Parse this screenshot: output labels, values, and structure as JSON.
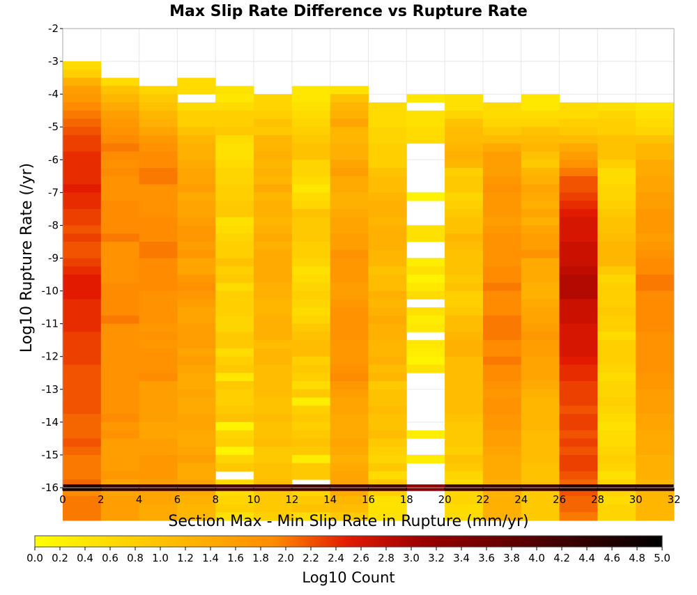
{
  "chart_data": {
    "type": "heatmap",
    "title": "Max Slip Rate Difference vs Rupture Rate",
    "xlabel": "Section Max - Min Slip Rate in Rupture (mm/yr)",
    "ylabel": "Log10 Rupture Rate (/yr)",
    "xlim": [
      0,
      32
    ],
    "ylim": [
      -16,
      -2
    ],
    "x_ticks": [
      0,
      2,
      4,
      6,
      8,
      10,
      12,
      14,
      16,
      18,
      20,
      22,
      24,
      26,
      28,
      30,
      32
    ],
    "y_ticks": [
      -2,
      -3,
      -4,
      -5,
      -6,
      -7,
      -8,
      -9,
      -10,
      -11,
      -12,
      -13,
      -14,
      -15,
      -16
    ],
    "x_bin_width": 2,
    "y_bin_height": 0.25,
    "y_bins_top": -3.0,
    "grid": true,
    "colorscale": {
      "label": "Log10 Count",
      "min": 0.0,
      "max": 5.0,
      "ticks": [
        "0.0",
        "0.2",
        "0.4",
        "0.6",
        "0.8",
        "1.0",
        "1.2",
        "1.4",
        "1.6",
        "1.8",
        "2.0",
        "2.2",
        "2.4",
        "2.6",
        "2.8",
        "3.0",
        "3.2",
        "3.4",
        "3.6",
        "3.8",
        "4.0",
        "4.2",
        "4.4",
        "4.6",
        "4.8",
        "5.0"
      ],
      "colors": [
        "#ffff00",
        "#ff8c00",
        "#e21a00",
        "#9a0000",
        "#000000"
      ]
    },
    "columns": [
      {
        "x": 1,
        "values": [
          0.6,
          0.8,
          1.3,
          1.6,
          1.7,
          1.9,
          2.0,
          2.1,
          2.2,
          2.3,
          2.3,
          2.4,
          2.4,
          2.4,
          2.4,
          2.5,
          2.4,
          2.4,
          2.3,
          2.3,
          2.2,
          2.3,
          2.2,
          2.2,
          2.3,
          2.4,
          2.5,
          2.5,
          2.5,
          2.4,
          2.4,
          2.4,
          2.4,
          2.3,
          2.3,
          2.3,
          2.3,
          2.2,
          2.2,
          2.2,
          2.2,
          2.2,
          2.2,
          2.1,
          2.1,
          2.1,
          2.2,
          2.1,
          2.0,
          2.0,
          2.0,
          2.1,
          1.9,
          2.0,
          2.0,
          2.0
        ]
      },
      {
        "x": 3,
        "values": [
          null,
          null,
          0.6,
          1.0,
          1.2,
          1.4,
          1.6,
          1.7,
          1.8,
          1.9,
          2.0,
          1.9,
          1.8,
          1.9,
          1.8,
          1.8,
          1.8,
          1.9,
          1.9,
          1.9,
          1.9,
          2.0,
          1.8,
          1.8,
          1.8,
          1.8,
          1.8,
          1.9,
          1.9,
          1.9,
          1.9,
          2.0,
          1.8,
          1.8,
          1.8,
          1.8,
          1.8,
          1.8,
          1.8,
          1.8,
          1.8,
          1.8,
          1.8,
          1.9,
          1.7,
          1.8,
          1.6,
          1.6,
          1.6,
          1.6,
          1.7,
          1.5,
          1.5,
          1.6,
          1.6,
          1.6
        ]
      },
      {
        "x": 5,
        "values": [
          null,
          null,
          null,
          0.7,
          0.9,
          1.0,
          1.2,
          1.3,
          1.5,
          1.7,
          1.8,
          1.9,
          1.9,
          2.0,
          2.0,
          1.8,
          1.8,
          1.8,
          1.8,
          1.9,
          1.9,
          1.9,
          2.0,
          2.0,
          1.9,
          1.9,
          1.9,
          1.9,
          1.8,
          1.8,
          1.8,
          1.8,
          1.7,
          1.8,
          1.7,
          1.8,
          1.8,
          1.8,
          1.9,
          1.6,
          1.6,
          1.6,
          1.6,
          1.6,
          1.5,
          1.5,
          1.6,
          1.6,
          1.7,
          1.7,
          1.7,
          1.6,
          1.5,
          1.5,
          1.4,
          1.4
        ]
      },
      {
        "x": 7,
        "values": [
          null,
          null,
          0.6,
          0.6,
          null,
          0.6,
          0.8,
          0.8,
          1.0,
          1.2,
          1.3,
          1.3,
          1.4,
          1.5,
          1.5,
          1.6,
          1.4,
          1.5,
          1.5,
          1.6,
          1.7,
          1.7,
          1.6,
          1.7,
          1.5,
          1.5,
          1.7,
          1.8,
          1.7,
          1.6,
          1.5,
          1.5,
          1.6,
          1.6,
          1.6,
          1.5,
          1.6,
          1.5,
          1.4,
          1.4,
          1.5,
          1.4,
          1.4,
          1.5,
          1.5,
          1.4,
          1.4,
          1.5,
          1.6,
          1.4,
          1.4,
          1.5,
          1.4,
          1.3,
          1.2,
          1.2
        ]
      },
      {
        "x": 9,
        "values": [
          null,
          null,
          null,
          0.5,
          0.4,
          0.6,
          0.8,
          0.8,
          0.9,
          0.6,
          0.5,
          0.5,
          0.6,
          0.7,
          0.7,
          0.8,
          0.8,
          0.9,
          0.9,
          0.5,
          0.6,
          0.7,
          0.8,
          0.8,
          1.0,
          0.8,
          0.9,
          0.6,
          0.8,
          0.8,
          0.8,
          0.7,
          0.7,
          0.9,
          0.9,
          0.6,
          0.8,
          0.9,
          0.4,
          0.9,
          0.8,
          0.8,
          0.9,
          1.0,
          0.2,
          0.7,
          0.8,
          0.2,
          0.7,
          0.9,
          null,
          0.6,
          0.6,
          0.7,
          0.8,
          0.5
        ]
      },
      {
        "x": 11,
        "values": [
          null,
          null,
          null,
          null,
          0.7,
          0.7,
          0.8,
          1.0,
          0.9,
          1.2,
          1.2,
          1.3,
          1.2,
          1.3,
          1.2,
          1.4,
          1.2,
          1.3,
          1.3,
          1.2,
          1.3,
          1.4,
          1.3,
          1.4,
          1.4,
          1.4,
          1.4,
          1.3,
          1.3,
          1.2,
          1.2,
          1.3,
          1.3,
          1.3,
          1.1,
          1.2,
          1.2,
          1.1,
          1.1,
          1.1,
          1.1,
          1.0,
          1.0,
          1.1,
          1.0,
          1.0,
          1.1,
          0.9,
          0.9,
          1.0,
          1.0,
          1.1,
          0.9,
          0.9,
          0.9,
          0.8
        ]
      },
      {
        "x": 13,
        "values": [
          null,
          null,
          null,
          0.4,
          0.4,
          0.5,
          0.6,
          0.7,
          0.8,
          0.9,
          1.0,
          1.0,
          0.7,
          0.7,
          0.6,
          0.4,
          0.6,
          0.7,
          1.0,
          0.9,
          0.9,
          0.9,
          0.8,
          0.8,
          0.7,
          0.5,
          0.6,
          0.7,
          0.8,
          0.7,
          0.6,
          0.7,
          0.9,
          1.0,
          1.1,
          1.1,
          0.8,
          0.9,
          0.8,
          0.6,
          0.9,
          0.3,
          0.8,
          0.9,
          0.8,
          0.9,
          1.0,
          0.9,
          0.3,
          0.9,
          0.9,
          null,
          0.7,
          0.9,
          1.0,
          0.6
        ]
      },
      {
        "x": 15,
        "values": [
          null,
          null,
          null,
          0.5,
          1.0,
          1.2,
          1.3,
          1.5,
          1.2,
          1.2,
          1.3,
          1.3,
          1.5,
          1.6,
          1.4,
          1.4,
          1.3,
          1.3,
          1.4,
          1.5,
          1.5,
          1.6,
          1.6,
          1.8,
          1.7,
          1.7,
          1.7,
          1.6,
          1.6,
          1.7,
          1.8,
          1.8,
          1.8,
          1.8,
          1.7,
          1.7,
          1.7,
          1.8,
          1.9,
          1.7,
          1.6,
          1.5,
          1.5,
          1.4,
          1.4,
          1.4,
          1.5,
          1.4,
          1.3,
          1.4,
          1.5,
          1.5,
          1.4,
          1.2,
          1.1,
          0.9
        ]
      },
      {
        "x": 17,
        "values": [
          null,
          null,
          null,
          null,
          null,
          0.6,
          0.6,
          0.6,
          0.7,
          0.7,
          0.8,
          0.8,
          0.8,
          1.0,
          1.1,
          1.1,
          1.2,
          1.3,
          1.3,
          1.2,
          1.3,
          1.3,
          1.3,
          1.2,
          1.2,
          1.0,
          1.1,
          1.1,
          1.3,
          1.2,
          1.3,
          1.4,
          1.3,
          1.3,
          1.2,
          1.2,
          1.3,
          1.1,
          1.2,
          0.9,
          1.0,
          1.0,
          1.1,
          1.0,
          1.0,
          1.1,
          0.9,
          0.8,
          0.7,
          0.9,
          0.6,
          0.9,
          0.8,
          0.5,
          0.5,
          0.5
        ]
      },
      {
        "x": 19,
        "values": [
          null,
          null,
          null,
          null,
          0.4,
          null,
          0.5,
          0.5,
          0.6,
          0.6,
          null,
          null,
          null,
          null,
          null,
          null,
          0.2,
          null,
          null,
          null,
          0.5,
          0.5,
          null,
          null,
          0.3,
          0.5,
          0.2,
          0.4,
          0.6,
          null,
          0.5,
          0.3,
          0.4,
          null,
          0.4,
          0.3,
          0.2,
          0.5,
          null,
          null,
          null,
          null,
          null,
          null,
          null,
          0.3,
          null,
          null,
          0.3,
          null,
          null,
          null,
          null,
          null,
          null,
          null
        ]
      },
      {
        "x": 21,
        "values": [
          null,
          null,
          null,
          null,
          0.5,
          0.5,
          0.7,
          1.0,
          1.1,
          1.1,
          1.2,
          1.3,
          1.2,
          0.8,
          0.9,
          0.9,
          0.7,
          0.8,
          0.9,
          1.0,
          1.0,
          1.2,
          1.1,
          1.0,
          1.0,
          1.0,
          0.9,
          1.0,
          0.8,
          0.8,
          0.9,
          1.1,
          1.1,
          1.2,
          1.3,
          1.3,
          1.1,
          1.1,
          1.1,
          1.1,
          1.1,
          1.1,
          1.1,
          1.0,
          0.9,
          0.9,
          0.9,
          0.8,
          1.0,
          0.9,
          0.7,
          0.6,
          0.7,
          0.7,
          0.6,
          0.6
        ]
      },
      {
        "x": 23,
        "values": [
          null,
          null,
          null,
          null,
          null,
          0.6,
          0.6,
          0.7,
          0.9,
          1.1,
          1.4,
          1.6,
          1.6,
          1.6,
          1.7,
          1.8,
          1.7,
          1.7,
          1.7,
          1.6,
          1.7,
          1.8,
          1.8,
          1.8,
          1.8,
          1.9,
          1.9,
          2.0,
          1.9,
          1.9,
          1.9,
          2.0,
          2.0,
          2.0,
          1.9,
          1.9,
          2.0,
          1.9,
          1.9,
          1.8,
          1.7,
          1.8,
          1.8,
          1.7,
          1.7,
          1.6,
          1.6,
          1.5,
          1.4,
          1.4,
          1.4,
          1.3,
          1.3,
          1.3,
          1.3,
          1.3
        ]
      },
      {
        "x": 25,
        "values": [
          null,
          null,
          null,
          null,
          0.4,
          0.4,
          0.6,
          0.7,
          1.0,
          1.1,
          1.2,
          1.0,
          0.9,
          1.2,
          1.3,
          1.5,
          1.4,
          1.3,
          1.5,
          1.3,
          1.5,
          1.6,
          1.6,
          1.8,
          1.4,
          1.4,
          1.4,
          1.3,
          1.3,
          1.4,
          1.5,
          1.5,
          1.6,
          1.7,
          1.6,
          1.6,
          1.5,
          1.5,
          1.5,
          1.4,
          1.3,
          1.2,
          1.2,
          1.2,
          1.2,
          1.1,
          1.1,
          1.1,
          1.1,
          1.0,
          1.0,
          1.0,
          0.9,
          0.9,
          0.9,
          0.9
        ]
      },
      {
        "x": 27,
        "values": [
          null,
          null,
          null,
          null,
          null,
          0.6,
          0.6,
          0.8,
          0.9,
          1.1,
          1.4,
          1.6,
          1.8,
          2.0,
          2.2,
          2.2,
          2.3,
          2.4,
          2.5,
          2.6,
          2.6,
          2.6,
          2.7,
          2.7,
          2.7,
          2.8,
          2.9,
          2.9,
          2.9,
          2.7,
          2.7,
          2.7,
          2.6,
          2.6,
          2.6,
          2.6,
          2.5,
          2.4,
          2.4,
          2.3,
          2.3,
          2.3,
          2.2,
          2.3,
          2.3,
          2.2,
          2.3,
          2.2,
          2.3,
          2.3,
          2.2,
          2.1,
          2.2,
          2.1,
          2.1,
          2.0
        ]
      },
      {
        "x": 29,
        "values": [
          null,
          null,
          null,
          null,
          null,
          0.5,
          0.7,
          0.8,
          0.8,
          1.0,
          1.0,
          1.0,
          0.8,
          0.6,
          0.6,
          0.7,
          0.7,
          0.8,
          0.9,
          1.0,
          1.0,
          1.1,
          1.2,
          1.2,
          1.2,
          0.9,
          0.7,
          0.8,
          0.8,
          0.8,
          0.9,
          0.8,
          0.8,
          0.6,
          0.8,
          0.8,
          0.8,
          0.7,
          0.6,
          0.7,
          0.7,
          0.8,
          0.7,
          0.6,
          0.5,
          0.6,
          0.6,
          0.7,
          0.8,
          0.7,
          0.5,
          0.7,
          0.7,
          0.6,
          0.7,
          0.7
        ]
      },
      {
        "x": 31,
        "values": [
          null,
          null,
          null,
          null,
          null,
          0.4,
          0.5,
          0.6,
          0.7,
          1.0,
          1.2,
          1.2,
          1.4,
          1.4,
          1.5,
          1.5,
          1.6,
          1.6,
          1.7,
          1.7,
          1.7,
          1.6,
          1.7,
          1.8,
          1.9,
          1.9,
          2.0,
          2.0,
          1.9,
          1.9,
          1.9,
          1.9,
          1.9,
          1.8,
          1.8,
          1.8,
          1.8,
          1.8,
          1.7,
          1.7,
          1.6,
          1.6,
          1.6,
          1.5,
          1.5,
          1.4,
          1.4,
          1.4,
          1.3,
          1.3,
          1.3,
          1.2,
          1.2,
          1.2,
          1.2,
          1.2
        ]
      }
    ],
    "bottom_row_min_bin": [
      -16.1,
      -15.9
    ],
    "bottom_row_values": [
      4.7,
      4.4,
      4.3,
      4.3,
      4.1,
      4.1,
      4.2,
      4.2,
      4.2,
      3.3,
      4.3,
      4.3,
      4.3,
      4.6,
      4.5,
      4.5
    ]
  }
}
